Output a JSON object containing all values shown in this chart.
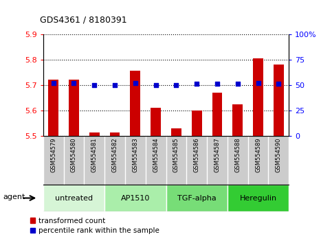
{
  "title": "GDS4361 / 8180391",
  "samples": [
    "GSM554579",
    "GSM554580",
    "GSM554581",
    "GSM554582",
    "GSM554583",
    "GSM554584",
    "GSM554585",
    "GSM554586",
    "GSM554587",
    "GSM554588",
    "GSM554589",
    "GSM554590"
  ],
  "red_values": [
    5.72,
    5.72,
    5.515,
    5.515,
    5.755,
    5.61,
    5.53,
    5.6,
    5.67,
    5.625,
    5.805,
    5.78
  ],
  "blue_values": [
    52,
    52,
    50,
    50,
    52,
    50,
    50,
    51,
    51,
    51,
    52,
    51
  ],
  "groups": [
    {
      "label": "untreated",
      "start": 0,
      "end": 3,
      "color": "#d6f5d6"
    },
    {
      "label": "AP1510",
      "start": 3,
      "end": 6,
      "color": "#aaeeaa"
    },
    {
      "label": "TGF-alpha",
      "start": 6,
      "end": 9,
      "color": "#77dd77"
    },
    {
      "label": "Heregulin",
      "start": 9,
      "end": 12,
      "color": "#33cc33"
    }
  ],
  "ylim_left": [
    5.5,
    5.9
  ],
  "ylim_right": [
    0,
    100
  ],
  "yticks_left": [
    5.5,
    5.6,
    5.7,
    5.8,
    5.9
  ],
  "yticks_right": [
    0,
    25,
    50,
    75,
    100
  ],
  "ytick_labels_right": [
    "0",
    "25",
    "50",
    "75",
    "100%"
  ],
  "bar_color": "#cc0000",
  "square_color": "#0000cc",
  "grid_color": "black",
  "tick_area_color": "#cccccc",
  "legend_red": "transformed count",
  "legend_blue": "percentile rank within the sample",
  "agent_label": "agent"
}
